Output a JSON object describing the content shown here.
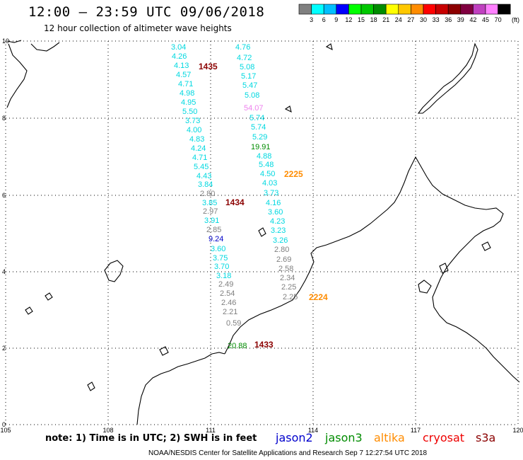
{
  "header": {
    "title": "12:00 – 23:59 UTC 09/06/2018",
    "subtitle": "12 hour collection of altimeter wave heights"
  },
  "scale": {
    "colors": [
      "#808080",
      "#00ffff",
      "#00bfff",
      "#0000ff",
      "#00ff00",
      "#00c800",
      "#008c00",
      "#ffff00",
      "#ffc800",
      "#ff8c00",
      "#ff0000",
      "#c80000",
      "#8c0000",
      "#800040",
      "#c040c0",
      "#ff80ff",
      "#000000"
    ],
    "labels": [
      "3",
      "6",
      "9",
      "12",
      "15",
      "18",
      "21",
      "24",
      "27",
      "30",
      "33",
      "36",
      "39",
      "42",
      "45",
      "70"
    ],
    "unit": "(ft)"
  },
  "map": {
    "x_ticks": [
      "105",
      "108",
      "111",
      "114",
      "117",
      "120"
    ],
    "y_ticks": [
      "10",
      "8",
      "6",
      "4",
      "2",
      "0"
    ],
    "passes": [
      {
        "label": "1435",
        "color": "#8b0000"
      },
      {
        "label": "2225",
        "color": "#ff8c00"
      },
      {
        "label": "1434",
        "color": "#8b0000"
      },
      {
        "label": "2224",
        "color": "#ff8c00"
      },
      {
        "label": "1433",
        "color": "#8b0000"
      }
    ],
    "left_track": [
      {
        "v": "3.04",
        "c": "#00d8e0"
      },
      {
        "v": "4.26",
        "c": "#00d8e0"
      },
      {
        "v": "4.13",
        "c": "#00d8e0"
      },
      {
        "v": "4.57",
        "c": "#00d8e0"
      },
      {
        "v": "4.71",
        "c": "#00d8e0"
      },
      {
        "v": "4.98",
        "c": "#00d8e0"
      },
      {
        "v": "4.95",
        "c": "#00d8e0"
      },
      {
        "v": "5.50",
        "c": "#00d8e0"
      },
      {
        "v": "3.73",
        "c": "#00d8e0"
      },
      {
        "v": "4.00",
        "c": "#00d8e0"
      },
      {
        "v": "4.83",
        "c": "#00d8e0"
      },
      {
        "v": "4.24",
        "c": "#00d8e0"
      },
      {
        "v": "4.71",
        "c": "#00d8e0"
      },
      {
        "v": "5.45",
        "c": "#00d8e0"
      },
      {
        "v": "4.43",
        "c": "#00d8e0"
      },
      {
        "v": "3.84",
        "c": "#00d8e0"
      },
      {
        "v": "2.80",
        "c": "#808080"
      },
      {
        "v": "3.85",
        "c": "#00d8e0"
      },
      {
        "v": "2.97",
        "c": "#808080"
      },
      {
        "v": "3.91",
        "c": "#00d8e0"
      },
      {
        "v": "2.85",
        "c": "#808080"
      },
      {
        "v": "9.24",
        "c": "#0000c8"
      },
      {
        "v": "3.60",
        "c": "#00d8e0"
      },
      {
        "v": "3.75",
        "c": "#00d8e0"
      },
      {
        "v": "3.70",
        "c": "#00d8e0"
      },
      {
        "v": "3.18",
        "c": "#00d8e0"
      },
      {
        "v": "2.49",
        "c": "#808080"
      },
      {
        "v": "2.54",
        "c": "#808080"
      },
      {
        "v": "2.46",
        "c": "#808080"
      },
      {
        "v": "2.21",
        "c": "#808080"
      },
      {
        "v": "0.59",
        "c": "#808080"
      },
      {
        "v": "20.88",
        "c": "#008c00"
      }
    ],
    "right_track": [
      {
        "v": "4.76",
        "c": "#00d8e0"
      },
      {
        "v": "4.72",
        "c": "#00d8e0"
      },
      {
        "v": "5.08",
        "c": "#00d8e0"
      },
      {
        "v": "5.17",
        "c": "#00d8e0"
      },
      {
        "v": "5.47",
        "c": "#00d8e0"
      },
      {
        "v": "5.08",
        "c": "#00d8e0"
      },
      {
        "v": "54.07",
        "c": "#ee82ee"
      },
      {
        "v": "5.74",
        "c": "#00d8e0"
      },
      {
        "v": "5.74",
        "c": "#00d8e0"
      },
      {
        "v": "5.29",
        "c": "#00d8e0"
      },
      {
        "v": "19.91",
        "c": "#008c00"
      },
      {
        "v": "4.88",
        "c": "#00d8e0"
      },
      {
        "v": "5.48",
        "c": "#00d8e0"
      },
      {
        "v": "4.50",
        "c": "#00d8e0"
      },
      {
        "v": "4.03",
        "c": "#00d8e0"
      },
      {
        "v": "3.73",
        "c": "#00d8e0"
      },
      {
        "v": "4.16",
        "c": "#00d8e0"
      },
      {
        "v": "3.60",
        "c": "#00d8e0"
      },
      {
        "v": "4.23",
        "c": "#00d8e0"
      },
      {
        "v": "3.23",
        "c": "#00d8e0"
      },
      {
        "v": "3.26",
        "c": "#00d8e0"
      },
      {
        "v": "2.80",
        "c": "#808080"
      },
      {
        "v": "2.69",
        "c": "#808080"
      },
      {
        "v": "2.58",
        "c": "#808080"
      },
      {
        "v": "2.34",
        "c": "#808080"
      },
      {
        "v": "2.25",
        "c": "#808080"
      },
      {
        "v": "2.25",
        "c": "#808080"
      }
    ]
  },
  "footer": {
    "note": "note: 1) Time is in UTC; 2) SWH is in feet",
    "satellites": [
      {
        "name": "jason2",
        "color": "#0000cc"
      },
      {
        "name": "jason3",
        "color": "#008c00"
      },
      {
        "name": "altika",
        "color": "#ff8c00"
      },
      {
        "name": "cryosat",
        "color": "#ee0000"
      },
      {
        "name": "s3a",
        "color": "#8b0000"
      }
    ],
    "credit": "NOAA/NESDIS Center for Satellite Applications and Research    Sep  7 12:27:54 UTC 2018"
  }
}
